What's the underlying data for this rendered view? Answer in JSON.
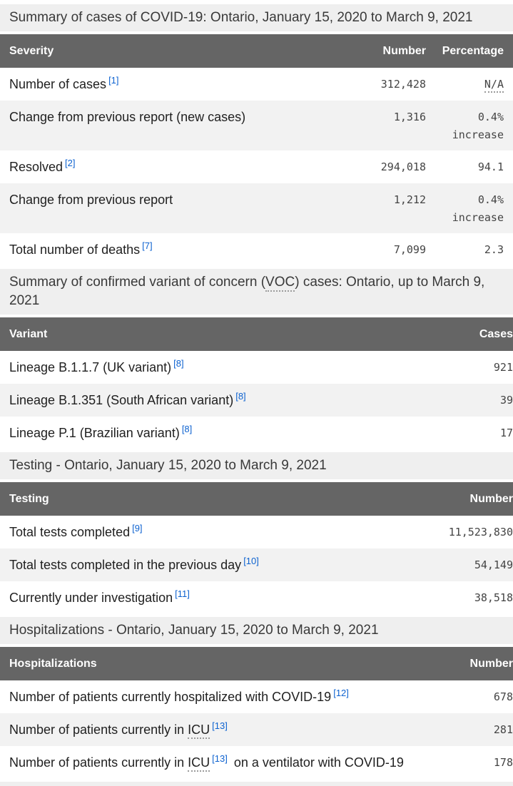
{
  "colors": {
    "header_bg": "#656565",
    "header_text": "#ffffff",
    "caption_bg": "#efefef",
    "stripe_bg": "#f2f2f2",
    "label_text": "#1f1f1f",
    "number_text": "#444444",
    "footnote_link_blue": "#0d62d0"
  },
  "sections": [
    {
      "caption": {
        "pre": "Summary of cases of COVID-19: Ontario, January 15, 2020 to March 9, 2021",
        "abbr": "",
        "post": ""
      },
      "columns": {
        "label": "Severity",
        "value": "Number",
        "pct": "Percentage"
      },
      "rows": [
        {
          "pre": "Number of cases",
          "abbr": "",
          "note": "[1]",
          "post": "",
          "value": "312,428",
          "pct": "N/A",
          "pct_abbr": true,
          "pct2": ""
        },
        {
          "pre": "Change from previous report (new cases)",
          "abbr": "",
          "note": "",
          "post": "",
          "value": "1,316",
          "pct": "0.4%",
          "pct_abbr": false,
          "pct2": "increase"
        },
        {
          "pre": "Resolved",
          "abbr": "",
          "note": "[2]",
          "post": "",
          "value": "294,018",
          "pct": "94.1",
          "pct_abbr": false,
          "pct2": ""
        },
        {
          "pre": "Change from previous report",
          "abbr": "",
          "note": "",
          "post": "",
          "value": "1,212",
          "pct": "0.4%",
          "pct_abbr": false,
          "pct2": "increase"
        },
        {
          "pre": "Total number of deaths",
          "abbr": "",
          "note": "[7]",
          "post": "",
          "value": "7,099",
          "pct": "2.3",
          "pct_abbr": false,
          "pct2": ""
        }
      ]
    },
    {
      "caption": {
        "pre": "Summary of confirmed variant of concern (",
        "abbr": "VOC",
        "post": ") cases: Ontario, up to March 9, 2021"
      },
      "columns": {
        "label": "Variant",
        "value": "Cases"
      },
      "rows": [
        {
          "pre": "Lineage B.1.1.7 (UK variant)",
          "abbr": "",
          "note": "[8]",
          "post": "",
          "value": "921"
        },
        {
          "pre": "Lineage B.1.351 (South African variant)",
          "abbr": "",
          "note": "[8]",
          "post": "",
          "value": "39"
        },
        {
          "pre": "Lineage P.1 (Brazilian variant)",
          "abbr": "",
          "note": "[8]",
          "post": "",
          "value": "17"
        }
      ]
    },
    {
      "caption": {
        "pre": "Testing - Ontario, January 15, 2020 to March 9, 2021",
        "abbr": "",
        "post": ""
      },
      "columns": {
        "label": "Testing",
        "value": "Number"
      },
      "rows": [
        {
          "pre": "Total tests completed",
          "abbr": "",
          "note": "[9]",
          "post": "",
          "value": "11,523,830"
        },
        {
          "pre": "Total tests completed in the previous day",
          "abbr": "",
          "note": "[10]",
          "post": "",
          "value": "54,149"
        },
        {
          "pre": "Currently under investigation",
          "abbr": "",
          "note": "[11]",
          "post": "",
          "value": "38,518"
        }
      ]
    },
    {
      "caption": {
        "pre": "Hospitalizations - Ontario, January 15, 2020 to March 9, 2021",
        "abbr": "",
        "post": ""
      },
      "columns": {
        "label": "Hospitalizations",
        "value": "Number"
      },
      "rows": [
        {
          "pre": "Number of patients currently hospitalized with COVID-19",
          "abbr": "",
          "note": "[12]",
          "post": "",
          "value": "678"
        },
        {
          "pre": "Number of patients currently in ",
          "abbr": "ICU",
          "note": "[13]",
          "post": "",
          "value": "281"
        },
        {
          "pre": "Number of patients currently in ",
          "abbr": "ICU",
          "note": "[13]",
          "post": " on a ventilator with COVID-19",
          "value": "178"
        }
      ]
    }
  ]
}
